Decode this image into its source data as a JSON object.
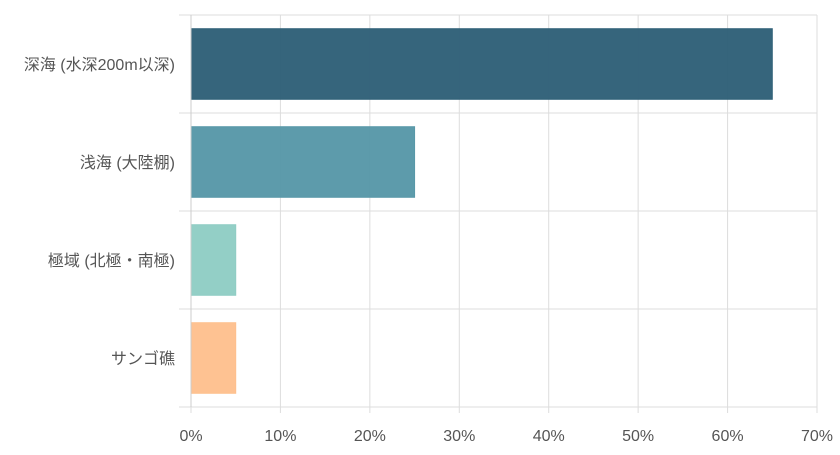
{
  "chart_data": {
    "type": "bar",
    "orientation": "horizontal",
    "categories": [
      "深海 (水深200m以深)",
      "浅海 (大陸棚)",
      "極域 (北極・南極)",
      "サンゴ礁"
    ],
    "values": [
      65,
      25,
      5,
      5
    ],
    "colors": [
      "#2f6078",
      "#5898a8",
      "#90cdc4",
      "#fec08e"
    ],
    "x_ticks": [
      "0%",
      "10%",
      "20%",
      "30%",
      "40%",
      "50%",
      "60%",
      "70%"
    ],
    "xlim": [
      0,
      70
    ],
    "unit": "%",
    "title": "",
    "xlabel": "",
    "ylabel": "",
    "grid": true,
    "legend": false
  }
}
